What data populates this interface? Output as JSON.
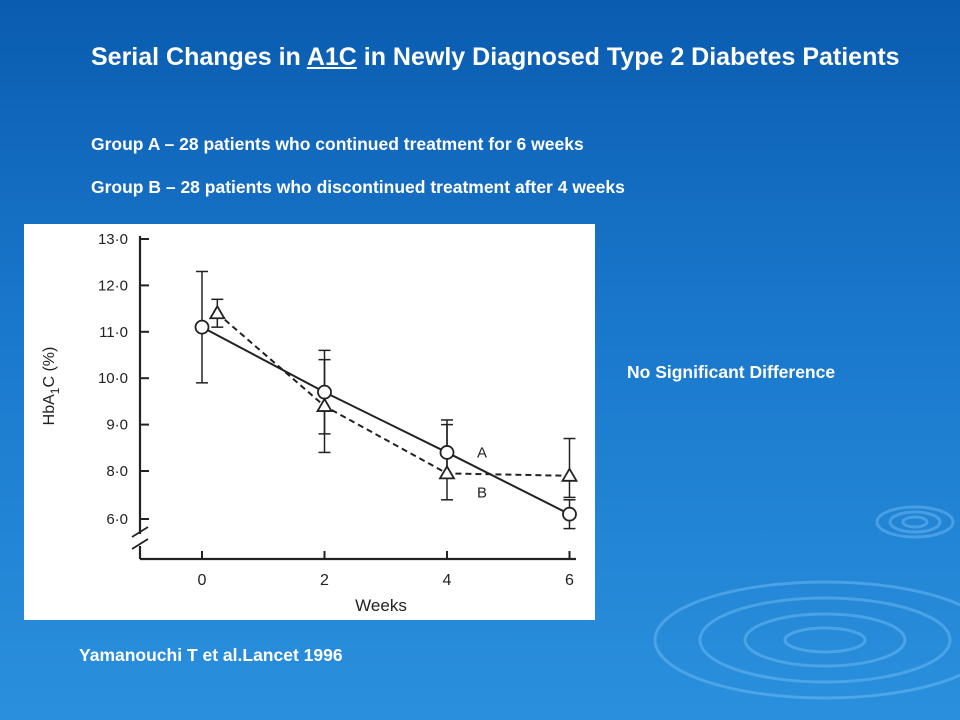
{
  "slide": {
    "title_part1": "Serial Changes in ",
    "title_link": "A1C",
    "title_part2": " in Newly Diagnosed Type 2 Diabetes Patients",
    "group_a_text": "Group A – 28 patients who continued treatment for 6 weeks",
    "group_b_text": "Group B – 28 patients who discontinued treatment after 4 weeks",
    "note": "No Significant Difference",
    "citation": "Yamanouchi T et al.Lancet 1996"
  },
  "colors": {
    "background_top": "#0a5cb0",
    "background_bottom": "#2a90dd",
    "text": "#ffffff",
    "chart_ink": "#222222"
  },
  "chart_data": {
    "type": "line",
    "xlabel": "Weeks",
    "ylabel": "HbA1C (%)",
    "x_ticks": [
      "0",
      "2",
      "4",
      "6"
    ],
    "y_ticks": [
      "6·0",
      "8·0",
      "9·0",
      "10·0",
      "11·0",
      "12·0",
      "13·0"
    ],
    "ylim": [
      6.0,
      13.0
    ],
    "y_axis_break": true,
    "series": [
      {
        "name": "A",
        "marker": "circle",
        "line_style": "solid",
        "x": [
          0,
          2,
          4,
          6
        ],
        "y": [
          11.1,
          9.7,
          8.4,
          6.2
        ],
        "err": [
          1.2,
          0.9,
          0.7,
          0.6
        ]
      },
      {
        "name": "B",
        "marker": "triangle",
        "line_style": "dashed",
        "x": [
          0.25,
          2,
          4,
          6
        ],
        "y": [
          11.4,
          9.4,
          7.9,
          7.8
        ],
        "err": [
          0.3,
          1.0,
          1.1,
          0.9
        ]
      }
    ]
  }
}
